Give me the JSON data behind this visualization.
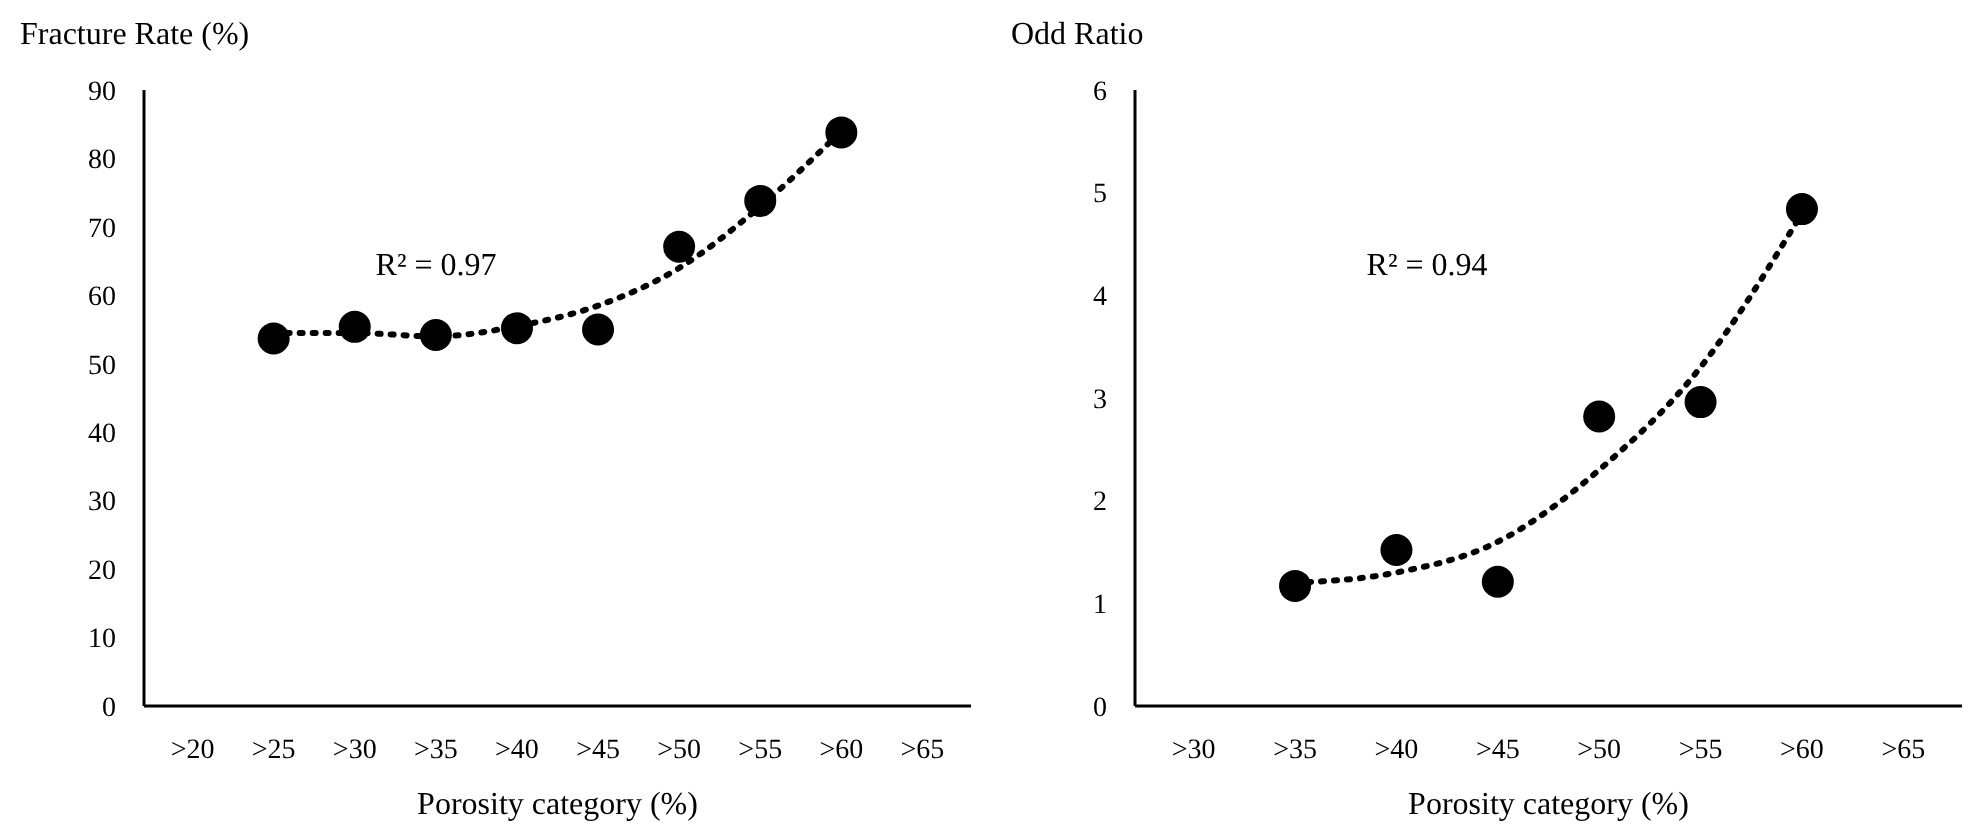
{
  "chart_data": [
    {
      "type": "scatter",
      "ylabel": "Fracture Rate  (%)",
      "xlabel": "Porosity category (%)",
      "categories": [
        ">20",
        ">25",
        ">30",
        ">35",
        ">40",
        ">45",
        ">50",
        ">55",
        ">60",
        ">65"
      ],
      "ylim": [
        0,
        90
      ],
      "yticks": [
        0,
        10,
        20,
        30,
        40,
        50,
        60,
        70,
        80,
        90
      ],
      "grid": false,
      "annotations": [
        "R² = 0.97"
      ],
      "series": [
        {
          "color": "#000000",
          "marker": "circle",
          "values": [
            null,
            53.7,
            55.4,
            54.2,
            55.2,
            55.0,
            67.1,
            73.8,
            83.8,
            null
          ]
        },
        {
          "type": "line",
          "color": "#000000",
          "line_style": "dotted",
          "values": [
            null,
            54.5,
            54.5,
            54.0,
            55.5,
            58.5,
            64.0,
            73.0,
            84.0,
            null
          ]
        }
      ]
    },
    {
      "type": "scatter",
      "ylabel": "Odd Ratio",
      "xlabel": "Porosity category (%)",
      "categories": [
        ">30",
        ">35",
        ">40",
        ">45",
        ">50",
        ">55",
        ">60",
        ">65"
      ],
      "ylim": [
        0,
        6
      ],
      "yticks": [
        0,
        1,
        2,
        3,
        4,
        5,
        6
      ],
      "grid": false,
      "annotations": [
        "R² = 0.94"
      ],
      "series": [
        {
          "color": "#000000",
          "marker": "circle",
          "values": [
            null,
            1.17,
            1.52,
            1.21,
            2.82,
            2.96,
            4.84,
            null
          ]
        },
        {
          "type": "line",
          "color": "#000000",
          "line_style": "dotted",
          "values": [
            null,
            1.2,
            1.3,
            1.6,
            2.3,
            3.3,
            4.8,
            null
          ]
        }
      ]
    }
  ]
}
